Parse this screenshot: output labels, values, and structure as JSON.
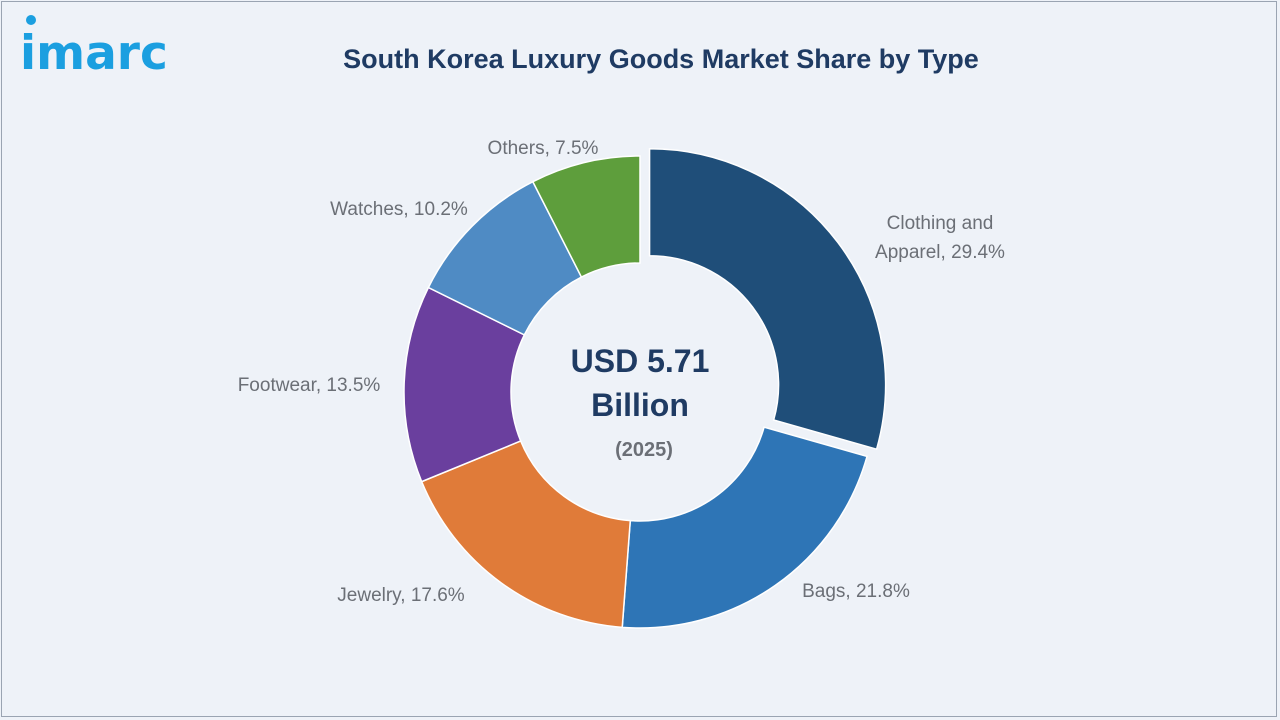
{
  "brand": {
    "logo_text": "imarc"
  },
  "chart_data": {
    "type": "pie",
    "title": "South Korea Luxury Goods Market Share by Type",
    "unit": "%",
    "center": {
      "value_label": "USD 5.71",
      "value_label_line2": "Billion",
      "year_label": "(2025)"
    },
    "slices": [
      {
        "name": "Clothing and Apparel",
        "label_line1": "Clothing and",
        "label_line2": "Apparel, 29.4%",
        "value": 29.4,
        "color": "#1f4e79",
        "exploded": true
      },
      {
        "name": "Bags",
        "label_line1": "Bags, 21.8%",
        "label_line2": "",
        "value": 21.8,
        "color": "#2e75b6",
        "exploded": false
      },
      {
        "name": "Jewelry",
        "label_line1": "Jewelry, 17.6%",
        "label_line2": "",
        "value": 17.6,
        "color": "#e07b39",
        "exploded": false
      },
      {
        "name": "Footwear",
        "label_line1": "Footwear, 13.5%",
        "label_line2": "",
        "value": 13.5,
        "color": "#6a3f9e",
        "exploded": false
      },
      {
        "name": "Watches",
        "label_line1": "Watches, 10.2%",
        "label_line2": "",
        "value": 10.2,
        "color": "#4f8bc4",
        "exploded": false
      },
      {
        "name": "Others",
        "label_line1": "Others, 7.5%",
        "label_line2": "",
        "value": 7.5,
        "color": "#5e9e3c",
        "exploded": false
      }
    ]
  }
}
